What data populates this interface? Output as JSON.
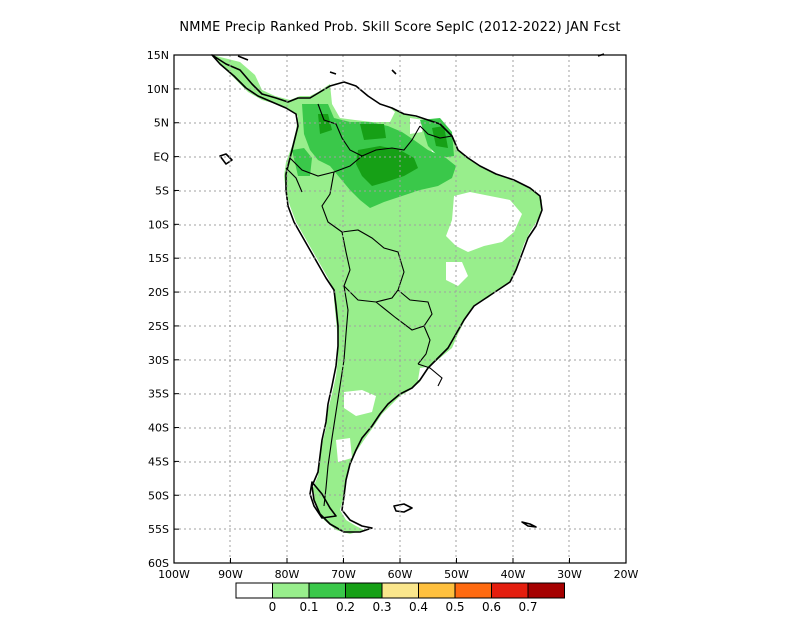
{
  "title": "NMME Precip Ranked Prob. Skill Score SepIC (2012-2022) JAN Fcst",
  "lat_labels": [
    "15N",
    "10N",
    "5N",
    "EQ",
    "5S",
    "10S",
    "15S",
    "20S",
    "25S",
    "30S",
    "35S",
    "40S",
    "45S",
    "50S",
    "55S",
    "60S"
  ],
  "lon_labels": [
    "100W",
    "90W",
    "80W",
    "70W",
    "60W",
    "50W",
    "40W",
    "30W",
    "20W"
  ],
  "colorbar": {
    "colors": [
      "#ffffff",
      "#98ee8c",
      "#3ac84a",
      "#16a016",
      "#fae68c",
      "#ffc03e",
      "#ff6a10",
      "#e41e0e",
      "#a50000"
    ],
    "labels": [
      "0",
      "0.1",
      "0.2",
      "0.3",
      "0.4",
      "0.5",
      "0.6",
      "0.7"
    ]
  },
  "legend_colors": {
    "land_low_skill": "#98ee8c",
    "medium_skill": "#3ac84a",
    "high_skill": "#16a016",
    "no_skill": "#ffffff",
    "coast": "#000000",
    "grid": "#a0a0a0"
  }
}
